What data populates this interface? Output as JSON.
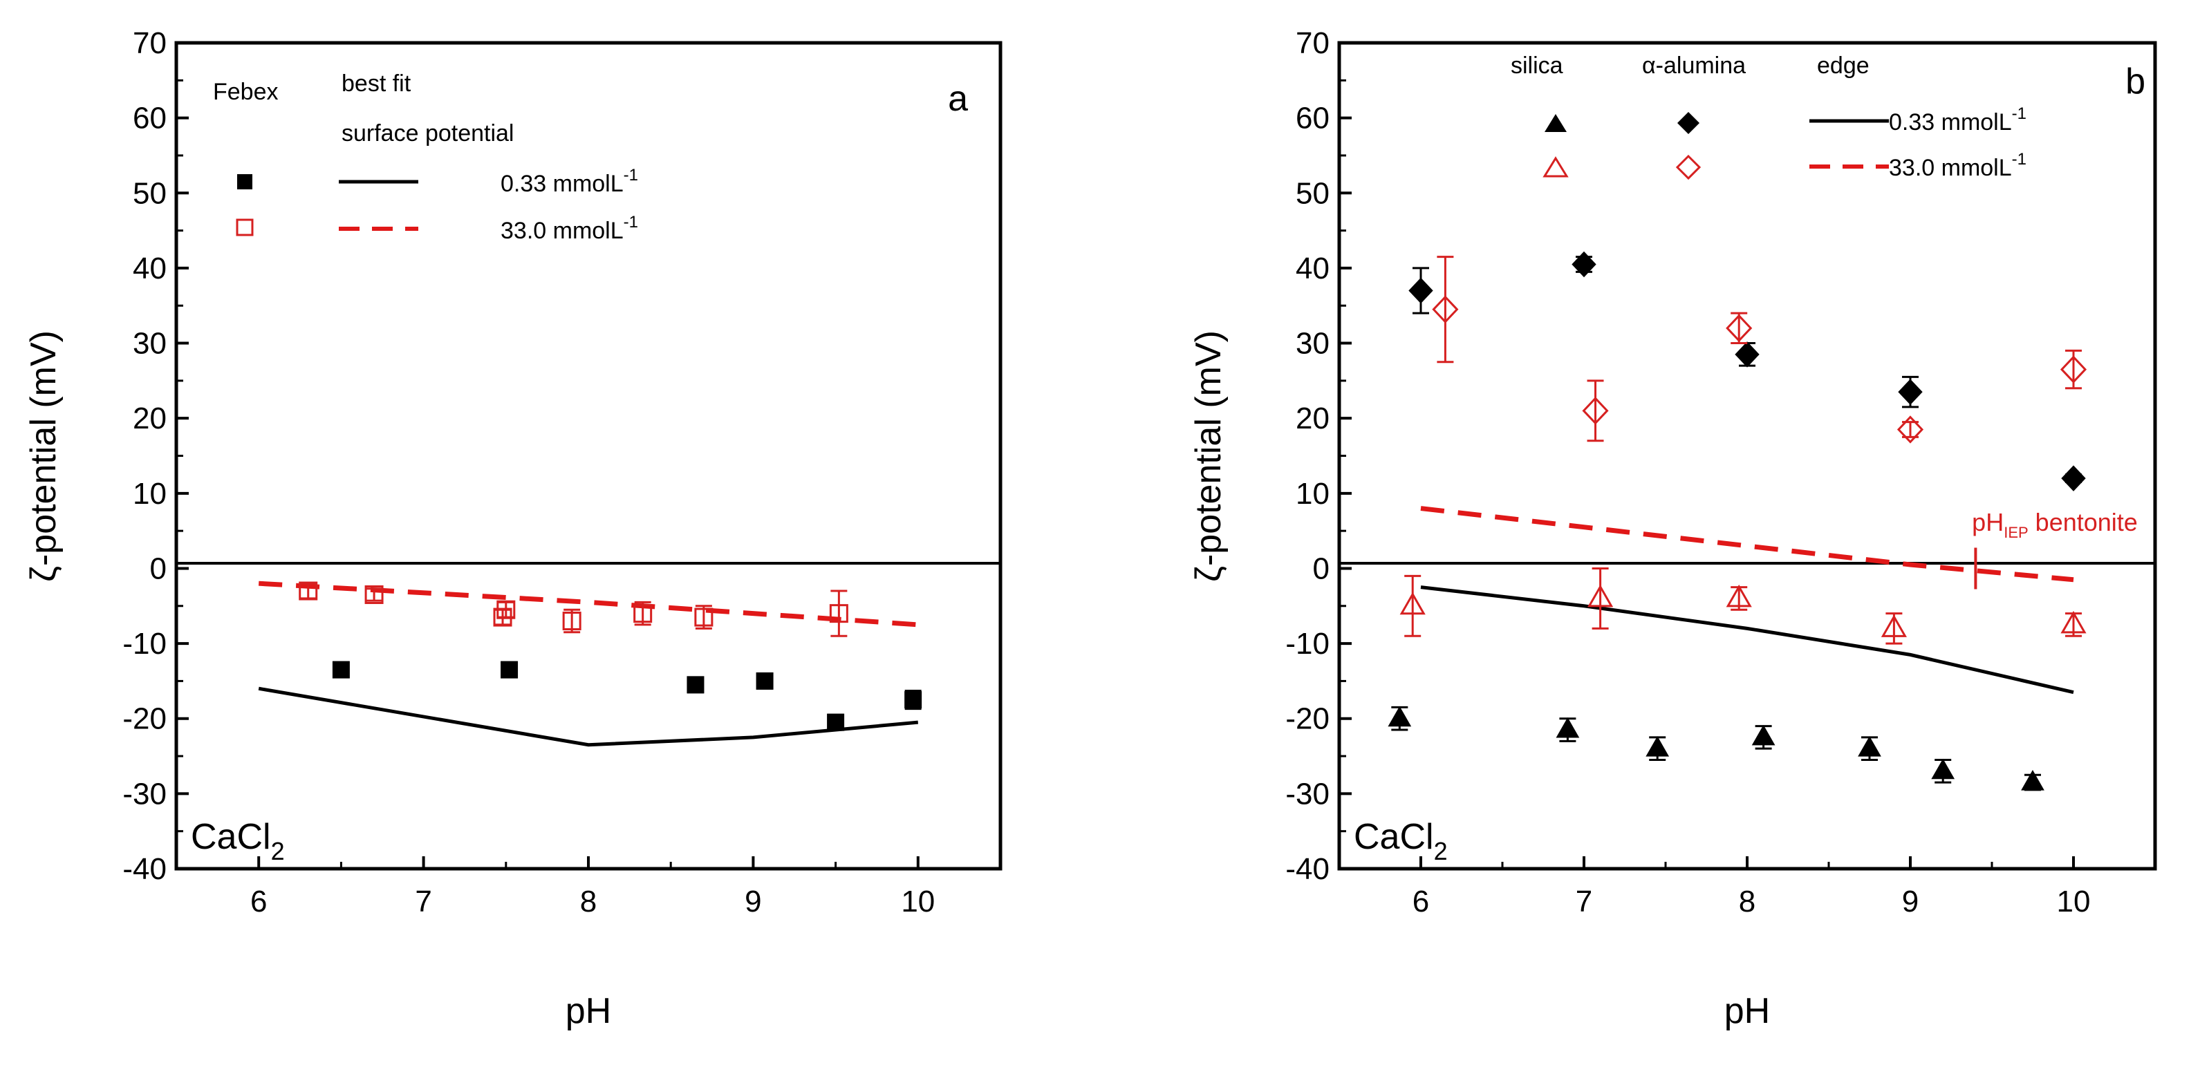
{
  "chart_data": [
    {
      "type": "scatter",
      "panel_letter": "a",
      "xlabel": "pH",
      "ylabel": "ζ-potential (mV)",
      "xlim": [
        5.5,
        10.5
      ],
      "ylim": [
        -40,
        70
      ],
      "x_ticks": [
        6,
        7,
        8,
        9,
        10
      ],
      "y_ticks": [
        -40,
        -30,
        -20,
        -10,
        0,
        10,
        20,
        30,
        40,
        50,
        60,
        70
      ],
      "zero_line": true,
      "annotation": {
        "base": "CaCl",
        "subscript": "2"
      },
      "legend": {
        "col_markers": "Febex",
        "col_lines_1": "best fit",
        "col_lines_2": "surface potential",
        "rows": [
          {
            "label": "0.33 mmolL",
            "superscript": "-1"
          },
          {
            "label": "33.0 mmolL",
            "superscript": "-1"
          }
        ]
      },
      "series": [
        {
          "name": "Febex 0.33 mmolL-1",
          "marker": "square-filled",
          "color": "#000000",
          "x": [
            6.5,
            7.52,
            8.65,
            9.07,
            9.5,
            9.97
          ],
          "y": [
            -13.5,
            -13.5,
            -15.5,
            -15.0,
            -20.5,
            -17.5
          ],
          "err": [
            1.0,
            1.0,
            1.0,
            1.0,
            1.0,
            1.2
          ]
        },
        {
          "name": "Febex 33.0 mmolL-1",
          "marker": "square-open",
          "color": "#d62020",
          "x": [
            6.3,
            6.7,
            7.48,
            7.5,
            7.9,
            8.33,
            8.7,
            9.52
          ],
          "y": [
            -3.0,
            -3.5,
            -6.5,
            -5.5,
            -7.0,
            -6.0,
            -6.5,
            -6.0
          ],
          "err": [
            1.0,
            0.8,
            1.0,
            1.0,
            1.5,
            1.5,
            1.5,
            3.0
          ]
        },
        {
          "name": "best fit surface potential 0.33 mmolL-1",
          "line": "solid",
          "color": "#000000",
          "x": [
            6,
            8,
            9,
            10
          ],
          "y": [
            -16.0,
            -23.5,
            -22.5,
            -20.5
          ]
        },
        {
          "name": "best fit surface potential 33.0 mmolL-1",
          "line": "dashed",
          "color": "#e01818",
          "x": [
            6,
            8,
            10
          ],
          "y": [
            -2.0,
            -4.5,
            -7.5
          ]
        }
      ]
    },
    {
      "type": "scatter",
      "panel_letter": "b",
      "xlabel": "pH",
      "ylabel": "ζ-potential (mV)",
      "xlim": [
        5.5,
        10.5
      ],
      "ylim": [
        -40,
        70
      ],
      "x_ticks": [
        6,
        7,
        8,
        9,
        10
      ],
      "y_ticks": [
        -40,
        -30,
        -20,
        -10,
        0,
        10,
        20,
        30,
        40,
        50,
        60,
        70
      ],
      "zero_line": true,
      "annotation": {
        "base": "CaCl",
        "subscript": "2"
      },
      "iep_annotation": {
        "x": 9.4,
        "prefix": "pH",
        "subscript": "IEP",
        "suffix": " bentonite"
      },
      "legend": {
        "col_silica": "silica",
        "col_alumina": "α-alumina",
        "col_edge": "edge",
        "rows": [
          {
            "label": "0.33 mmolL",
            "superscript": "-1"
          },
          {
            "label": "33.0 mmolL",
            "superscript": "-1"
          }
        ]
      },
      "series": [
        {
          "name": "silica 0.33 mmolL-1",
          "marker": "triangle-filled",
          "color": "#000000",
          "x": [
            5.87,
            6.9,
            7.45,
            8.1,
            8.75,
            9.2,
            9.75
          ],
          "y": [
            -20.0,
            -21.5,
            -24.0,
            -22.5,
            -24.0,
            -27.0,
            -28.5
          ],
          "err": [
            1.5,
            1.5,
            1.5,
            1.5,
            1.5,
            1.5,
            1.0
          ]
        },
        {
          "name": "silica 33.0 mmolL-1",
          "marker": "triangle-open",
          "color": "#d62020",
          "x": [
            5.95,
            7.1,
            7.95,
            8.9,
            10.0
          ],
          "y": [
            -5.0,
            -4.0,
            -4.0,
            -8.0,
            -7.5
          ],
          "err": [
            4.0,
            4.0,
            1.5,
            2.0,
            1.5
          ]
        },
        {
          "name": "α-alumina 0.33 mmolL-1",
          "marker": "diamond-filled",
          "color": "#000000",
          "x": [
            6.0,
            7.0,
            8.0,
            9.0,
            10.0
          ],
          "y": [
            37.0,
            40.5,
            28.5,
            23.5,
            12.0
          ],
          "err": [
            3.0,
            1.0,
            1.5,
            2.0,
            0.5
          ]
        },
        {
          "name": "α-alumina 33.0 mmolL-1",
          "marker": "diamond-open",
          "color": "#d62020",
          "x": [
            6.15,
            7.07,
            7.95,
            9.0,
            10.0
          ],
          "y": [
            34.5,
            21.0,
            32.0,
            18.5,
            26.5
          ],
          "err": [
            7.0,
            4.0,
            2.0,
            1.0,
            2.5
          ]
        },
        {
          "name": "edge 0.33 mmolL-1",
          "line": "solid",
          "color": "#000000",
          "x": [
            6,
            7,
            8,
            9,
            10
          ],
          "y": [
            -2.5,
            -5.0,
            -8.0,
            -11.5,
            -16.5
          ]
        },
        {
          "name": "edge 33.0 mmolL-1",
          "line": "dashed",
          "color": "#e01818",
          "x": [
            6,
            7,
            8,
            9,
            10
          ],
          "y": [
            8.0,
            5.5,
            3.0,
            0.5,
            -1.5
          ]
        }
      ]
    }
  ]
}
